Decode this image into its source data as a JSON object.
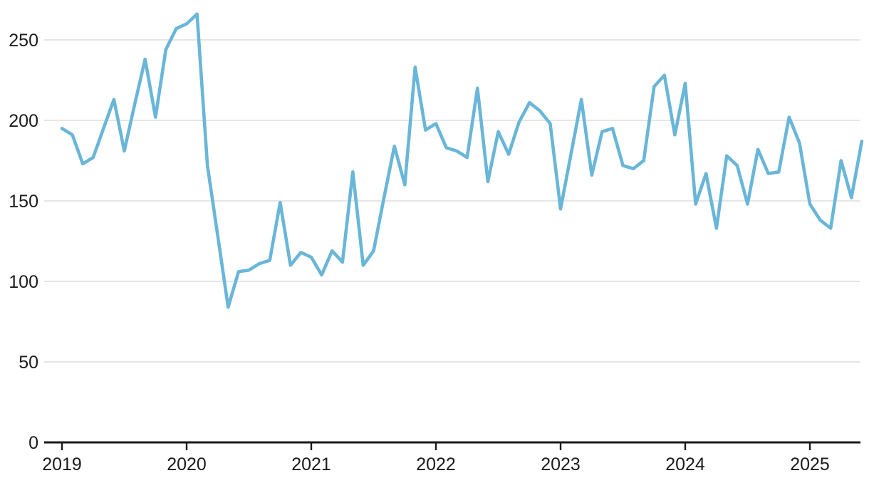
{
  "chart_data": {
    "type": "line",
    "title": "",
    "xlabel": "",
    "ylabel": "",
    "frequency": "monthly",
    "x_start": "2019-01",
    "x_end": "2025-06",
    "x_tick_labels": [
      "2019",
      "2020",
      "2021",
      "2022",
      "2023",
      "2024",
      "2025"
    ],
    "y_tick_labels": [
      "0",
      "50",
      "100",
      "150",
      "200",
      "250"
    ],
    "y_tick_values": [
      0,
      50,
      100,
      150,
      200,
      250
    ],
    "ylim": [
      0,
      270
    ],
    "grid": "horizontal-only",
    "legend": "none",
    "line_color": "#69b6d8",
    "grid_color": "#e2e2e2",
    "axis_color": "#1a1a1a",
    "text_color": "#1b1b1b",
    "series": [
      {
        "name": "monthly-value",
        "values": [
          195,
          191,
          173,
          177,
          195,
          213,
          181,
          210,
          238,
          202,
          244,
          257,
          260,
          266,
          172,
          128,
          84,
          106,
          107,
          111,
          113,
          149,
          110,
          118,
          115,
          104,
          119,
          112,
          168,
          110,
          119,
          152,
          184,
          160,
          233,
          194,
          198,
          183,
          181,
          177,
          220,
          162,
          193,
          179,
          199,
          211,
          206,
          198,
          145,
          179,
          213,
          166,
          193,
          195,
          172,
          170,
          175,
          221,
          228,
          191,
          223,
          148,
          167,
          133,
          178,
          172,
          148,
          182,
          167,
          168,
          202,
          186,
          148,
          138,
          133,
          175,
          152,
          187
        ]
      }
    ]
  }
}
